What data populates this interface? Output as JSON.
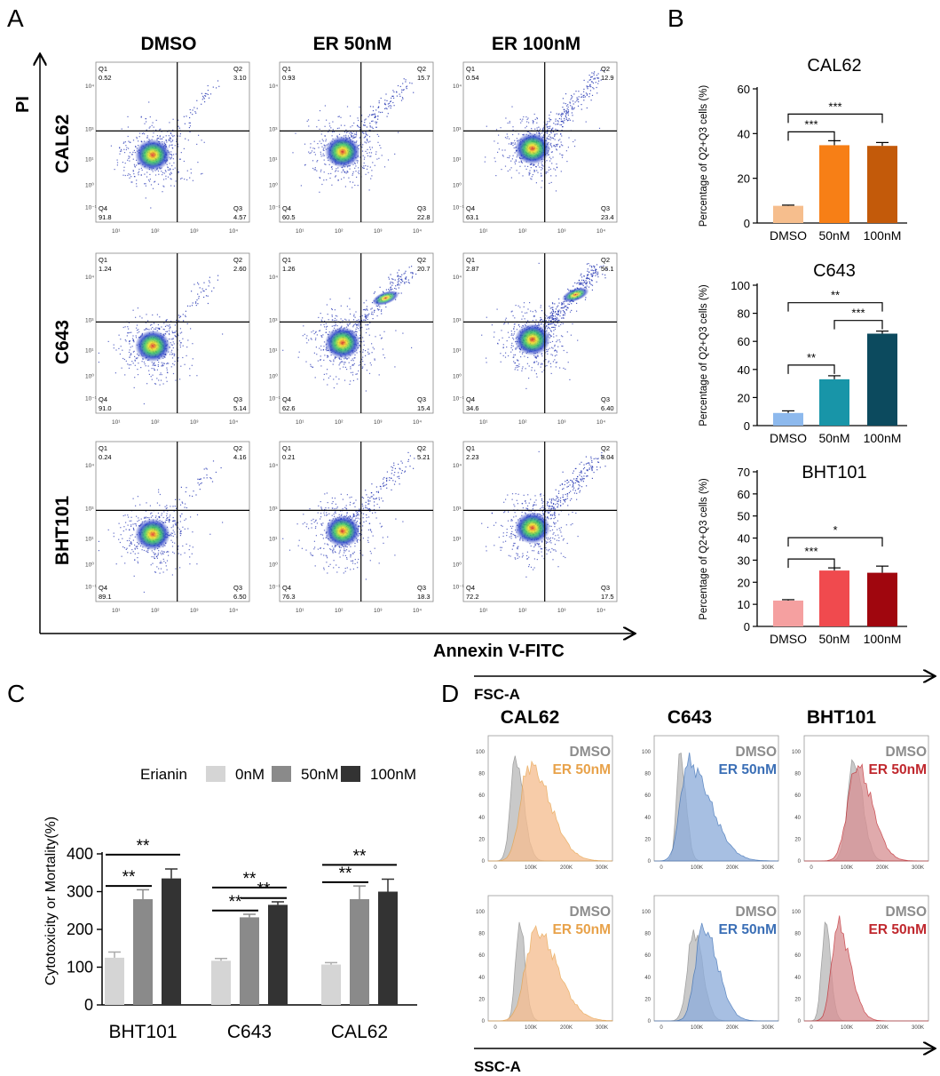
{
  "panel_labels": [
    "A",
    "B",
    "C",
    "D"
  ],
  "panel_a": {
    "y_axis_label": "PI",
    "x_axis_label": "Annexin V-FITC",
    "column_headers": [
      "DMSO",
      "ER 50nM",
      "ER 100nM"
    ],
    "row_labels": [
      "CAL62",
      "C643",
      "BHT101"
    ],
    "quadrant_names": [
      "Q1",
      "Q2",
      "Q3",
      "Q4"
    ],
    "axis_ticks": [
      "10¹",
      "10²",
      "10³",
      "10⁴",
      "10⁰",
      "10⁻¹"
    ],
    "cells": [
      [
        {
          "q1": "0.52",
          "q2": "3.10",
          "q3": "4.57",
          "q4": "91.8"
        },
        {
          "q1": "0.93",
          "q2": "15.7",
          "q3": "22.8",
          "q4": "60.5"
        },
        {
          "q1": "0.54",
          "q2": "12.9",
          "q3": "23.4",
          "q4": "63.1"
        }
      ],
      [
        {
          "q1": "1.24",
          "q2": "2.60",
          "q3": "5.14",
          "q4": "91.0"
        },
        {
          "q1": "1.26",
          "q2": "20.7",
          "q3": "15.4",
          "q4": "62.6"
        },
        {
          "q1": "2.87",
          "q2": "56.1",
          "q3": "6.40",
          "q4": "34.6"
        }
      ],
      [
        {
          "q1": "0.24",
          "q2": "4.16",
          "q3": "6.50",
          "q4": "89.1"
        },
        {
          "q1": "0.21",
          "q2": "5.21",
          "q3": "18.3",
          "q4": "76.3"
        },
        {
          "q1": "2.23",
          "q2": "8.04",
          "q3": "17.5",
          "q4": "72.2"
        }
      ]
    ]
  },
  "chart_data": [
    {
      "type": "bar",
      "title": "CAL62",
      "categories": [
        "DMSO",
        "50nM",
        "100nM"
      ],
      "values": [
        7.7,
        34.8,
        34.5
      ],
      "errors": [
        0.3,
        2.0,
        1.5
      ],
      "ylabel": "Percentage of Q2+Q3 cells (%)",
      "ylim": [
        0,
        60
      ],
      "yticks": [
        "0",
        "20",
        "40",
        "60"
      ],
      "colors": [
        "#F6BE8D",
        "#F77F16",
        "#C35A0A"
      ],
      "significance": [
        {
          "from": 0,
          "to": 1,
          "label": "***"
        },
        {
          "from": 0,
          "to": 2,
          "label": "***"
        }
      ]
    },
    {
      "type": "bar",
      "title": "C643",
      "categories": [
        "DMSO",
        "50nM",
        "100nM"
      ],
      "values": [
        9.0,
        33.0,
        65.5
      ],
      "errors": [
        1.5,
        2.5,
        1.8
      ],
      "ylabel": "Percentage of Q2+Q3 cells (%)",
      "ylim": [
        0,
        100
      ],
      "yticks": [
        "0",
        "20",
        "40",
        "60",
        "80",
        "100"
      ],
      "colors": [
        "#8DB9ED",
        "#1895A8",
        "#0C4A5E"
      ],
      "significance": [
        {
          "from": 0,
          "to": 1,
          "label": "**"
        },
        {
          "from": 1,
          "to": 2,
          "label": "***"
        },
        {
          "from": 0,
          "to": 2,
          "label": "**"
        }
      ]
    },
    {
      "type": "bar",
      "title": "BHT101",
      "categories": [
        "DMSO",
        "50nM",
        "100nM"
      ],
      "values": [
        11.7,
        25.3,
        24.3
      ],
      "errors": [
        0.4,
        1.2,
        3.0
      ],
      "ylabel": "Percentage of Q2+Q3 cells (%)",
      "ylim": [
        0,
        70
      ],
      "yticks": [
        "0",
        "10",
        "20",
        "30",
        "40",
        "50",
        "60",
        "70"
      ],
      "colors": [
        "#F5A0A0",
        "#F04A4E",
        "#A0060E"
      ],
      "significance": [
        {
          "from": 0,
          "to": 1,
          "label": "***"
        },
        {
          "from": 0,
          "to": 2,
          "label": "*"
        }
      ]
    },
    {
      "type": "bar",
      "title": "",
      "categories": [
        "BHT101",
        "C643",
        "CAL62"
      ],
      "legend_title": "Erianin",
      "series": [
        {
          "name": "0nM",
          "values": [
            125,
            117,
            107
          ],
          "errors": [
            15,
            6,
            5
          ],
          "color": "#D5D5D5"
        },
        {
          "name": "50nM",
          "values": [
            280,
            232,
            280
          ],
          "errors": [
            25,
            8,
            35
          ],
          "color": "#8A8A8A"
        },
        {
          "name": "100nM",
          "values": [
            335,
            265,
            300
          ],
          "errors": [
            25,
            8,
            33
          ],
          "color": "#333333"
        }
      ],
      "ylabel": "Cytotoxicity or Mortality(%)",
      "ylim": [
        0,
        400
      ],
      "yticks": [
        "0",
        "100",
        "200",
        "300",
        "400"
      ],
      "significance": [
        {
          "group": 0,
          "from": 0,
          "to": 1,
          "label": "**"
        },
        {
          "group": 0,
          "from": 0,
          "to": 2,
          "label": "**"
        },
        {
          "group": 1,
          "from": 0,
          "to": 1,
          "label": "**"
        },
        {
          "group": 1,
          "from": 1,
          "to": 2,
          "label": "**"
        },
        {
          "group": 1,
          "from": 0,
          "to": 2,
          "label": "**"
        },
        {
          "group": 2,
          "from": 0,
          "to": 1,
          "label": "**"
        },
        {
          "group": 2,
          "from": 0,
          "to": 2,
          "label": "**"
        }
      ]
    }
  ],
  "panel_d": {
    "column_headers": [
      "CAL62",
      "C643",
      "BHT101"
    ],
    "row_labels": [
      "FSC-A",
      "SSC-A"
    ],
    "legend_control": "DMSO",
    "legend_treatment": "ER 50nM",
    "control_color": "#8C8C8C",
    "treatment_colors": [
      "#E8A24A",
      "#3B6FB6",
      "#C0282E"
    ],
    "fill_colors": [
      "#F5BE92",
      "#8FAEDB",
      "#D89396"
    ],
    "x_ticks": [
      "0",
      "100K",
      "200K",
      "300K"
    ],
    "y_ticks": [
      "0",
      "20",
      "40",
      "60",
      "80",
      "100"
    ]
  }
}
